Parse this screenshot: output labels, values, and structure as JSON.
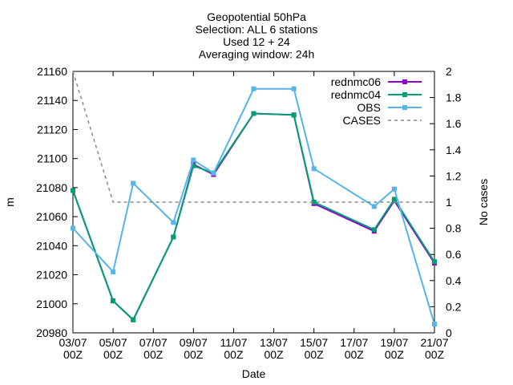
{
  "chart_data": {
    "type": "line",
    "title_lines": [
      "Geopotential 50hPa",
      "Selection: ALL      6 stations",
      "Used 12 + 24",
      "Averaging window: 24h"
    ],
    "xlabel": "Date",
    "ylabel": "m",
    "y2label": "No cases",
    "xlim_days": [
      3,
      21
    ],
    "x_ticks": [
      {
        "day": 3,
        "label": [
          "03/07",
          "00Z"
        ]
      },
      {
        "day": 5,
        "label": [
          "05/07",
          "00Z"
        ]
      },
      {
        "day": 7,
        "label": [
          "07/07",
          "00Z"
        ]
      },
      {
        "day": 9,
        "label": [
          "09/07",
          "00Z"
        ]
      },
      {
        "day": 11,
        "label": [
          "11/07",
          "00Z"
        ]
      },
      {
        "day": 13,
        "label": [
          "13/07",
          "00Z"
        ]
      },
      {
        "day": 15,
        "label": [
          "15/07",
          "00Z"
        ]
      },
      {
        "day": 17,
        "label": [
          "17/07",
          "00Z"
        ]
      },
      {
        "day": 19,
        "label": [
          "19/07",
          "00Z"
        ]
      },
      {
        "day": 21,
        "label": [
          "21/07",
          "00Z"
        ]
      }
    ],
    "ylim": [
      20980,
      21160
    ],
    "y_ticks": [
      20980,
      21000,
      21020,
      21040,
      21060,
      21080,
      21100,
      21120,
      21140,
      21160
    ],
    "y2lim": [
      0,
      2
    ],
    "y2_ticks": [
      "0",
      "0.2",
      "0.4",
      "0.6",
      "0.8",
      "1",
      "1.2",
      "1.4",
      "1.6",
      "1.8",
      "2"
    ],
    "legend_position": "top-right",
    "series": [
      {
        "name": "rednmc06",
        "color": "#9400d3",
        "marker": "square",
        "axis": "y1",
        "points": [
          [
            3,
            21078
          ],
          [
            5,
            21002
          ],
          [
            6,
            20989
          ],
          [
            8,
            21046
          ],
          [
            9,
            21096
          ],
          [
            10,
            21089
          ],
          [
            12,
            21131
          ],
          [
            14,
            21130
          ],
          [
            15,
            21069
          ],
          [
            18,
            21050
          ],
          [
            19,
            21071
          ],
          [
            21,
            21028
          ]
        ]
      },
      {
        "name": "rednmc04",
        "color": "#009e73",
        "marker": "square",
        "axis": "y1",
        "points": [
          [
            3,
            21078
          ],
          [
            5,
            21002
          ],
          [
            6,
            20989
          ],
          [
            8,
            21046
          ],
          [
            9,
            21095
          ],
          [
            10,
            21090
          ],
          [
            12,
            21131
          ],
          [
            14,
            21130
          ],
          [
            15,
            21070
          ],
          [
            18,
            21051
          ],
          [
            19,
            21072
          ],
          [
            21,
            21029
          ]
        ]
      },
      {
        "name": "OBS",
        "color": "#56b4e9",
        "marker": "square",
        "axis": "y1",
        "points": [
          [
            3,
            21052
          ],
          [
            5,
            21022
          ],
          [
            6,
            21083
          ],
          [
            8,
            21056
          ],
          [
            9,
            21099
          ],
          [
            10,
            21090
          ],
          [
            12,
            21148
          ],
          [
            14,
            21148
          ],
          [
            15,
            21093
          ],
          [
            18,
            21067
          ],
          [
            19,
            21079
          ],
          [
            21,
            20986
          ]
        ]
      },
      {
        "name": "CASES",
        "color": "#888888",
        "dash": true,
        "axis": "y2",
        "points": [
          [
            3,
            2
          ],
          [
            4,
            1.5
          ],
          [
            5,
            1
          ],
          [
            21,
            1
          ]
        ]
      }
    ]
  }
}
